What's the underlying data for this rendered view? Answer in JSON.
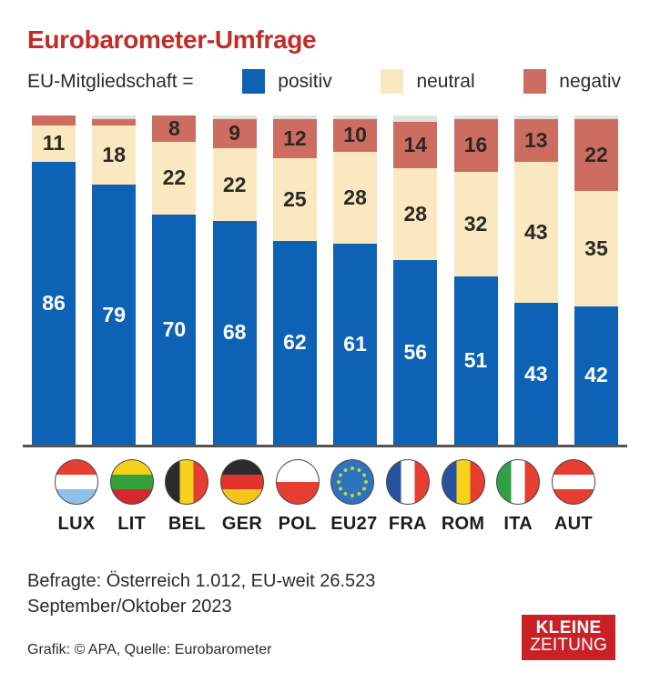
{
  "title": "Eurobarometer-Umfrage",
  "legend": {
    "prefix": "EU-Mitgliedschaft =",
    "items": [
      {
        "label": "positiv",
        "color": "#0d62b6"
      },
      {
        "label": "neutral",
        "color": "#f9e8c0"
      },
      {
        "label": "negativ",
        "color": "#cd6d62"
      }
    ]
  },
  "chart_data": {
    "type": "bar",
    "stacked": true,
    "categories": [
      "LUX",
      "LIT",
      "BEL",
      "GER",
      "POL",
      "EU27",
      "FRA",
      "ROM",
      "ITA",
      "AUT"
    ],
    "series": [
      {
        "name": "positiv",
        "color": "#0d62b6",
        "label_color": "#ffffff",
        "values": [
          86,
          79,
          70,
          68,
          62,
          61,
          56,
          51,
          43,
          42
        ],
        "labels": [
          "86",
          "79",
          "70",
          "68",
          "62",
          "61",
          "56",
          "51",
          "43",
          "42"
        ]
      },
      {
        "name": "neutral",
        "color": "#f9e8c0",
        "label_color": "#2a2923",
        "values": [
          11,
          18,
          22,
          22,
          25,
          28,
          28,
          32,
          43,
          35
        ],
        "labels": [
          "11",
          "18",
          "22",
          "22",
          "25",
          "28",
          "28",
          "32",
          "43",
          "35"
        ]
      },
      {
        "name": "negativ",
        "color": "#cd6d62",
        "label_color": "#2a2923",
        "values": [
          3,
          2,
          8,
          9,
          12,
          10,
          14,
          16,
          13,
          22
        ],
        "labels": [
          "",
          "",
          "8",
          "9",
          "12",
          "10",
          "14",
          "16",
          "13",
          "22"
        ]
      },
      {
        "name": "rest-unlabeled",
        "color": "#e2e2e0",
        "label_color": "#2a2923",
        "values": [
          0,
          1,
          0,
          1,
          1,
          1,
          2,
          1,
          1,
          1
        ],
        "labels": [
          "",
          "",
          "",
          "",
          "",
          "",
          "",
          "",
          "",
          ""
        ]
      }
    ],
    "ylim": [
      0,
      100
    ],
    "grid": false,
    "legend_position": "top",
    "highlight_category": "AUT",
    "flags": [
      "lux",
      "lit",
      "bel",
      "ger",
      "pol",
      "eu27",
      "fra",
      "rom",
      "ita",
      "aut"
    ]
  },
  "footer": {
    "line1": "Befragte: Österreich 1.012, EU-weit 26.523",
    "line2": "September/Oktober 2023",
    "credit": "Grafik: © APA, Quelle: Eurobarometer"
  },
  "logo": {
    "line1": "KLEINE",
    "line2": "ZEITUNG",
    "color": "#ca2128"
  }
}
